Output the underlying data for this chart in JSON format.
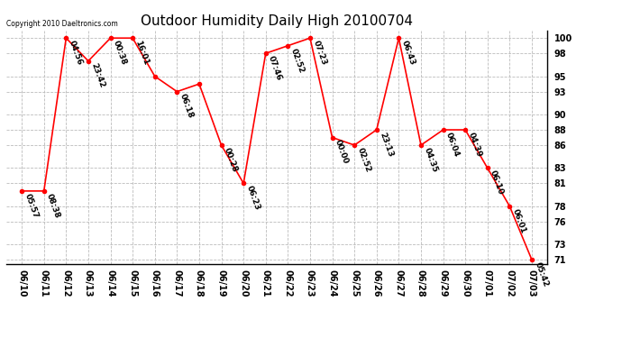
{
  "title": "Outdoor Humidity Daily High 20100704",
  "copyright": "Copyright 2010 Daeltronics.com",
  "x_labels": [
    "06/10",
    "06/11",
    "06/12",
    "06/13",
    "06/14",
    "06/15",
    "06/16",
    "06/17",
    "06/18",
    "06/19",
    "06/20",
    "06/21",
    "06/22",
    "06/23",
    "06/24",
    "06/25",
    "06/26",
    "06/27",
    "06/28",
    "06/29",
    "06/30",
    "07/01",
    "07/02",
    "07/03"
  ],
  "y_values": [
    80,
    80,
    100,
    97,
    100,
    100,
    95,
    93,
    94,
    86,
    81,
    98,
    99,
    100,
    87,
    86,
    88,
    100,
    86,
    88,
    88,
    83,
    78,
    71
  ],
  "point_labels": [
    "05:57",
    "08:38",
    "04:56",
    "23:42",
    "00:38",
    "16:01",
    "",
    "06:18",
    "",
    "00:28",
    "06:23",
    "07:46",
    "02:52",
    "07:23",
    "00:00",
    "02:52",
    "23:13",
    "06:43",
    "04:35",
    "06:04",
    "04:39",
    "06:10",
    "06:01",
    "05:42"
  ],
  "y_ticks": [
    71,
    73,
    76,
    78,
    81,
    83,
    86,
    88,
    90,
    93,
    95,
    98,
    100
  ],
  "ylim": [
    70.5,
    101
  ],
  "xlim": [
    -0.7,
    23.7
  ],
  "line_color": "red",
  "marker_color": "red",
  "bg_color": "white",
  "grid_color": "#bbbbbb",
  "title_fontsize": 11,
  "tick_fontsize": 7,
  "label_fontsize": 6.5
}
